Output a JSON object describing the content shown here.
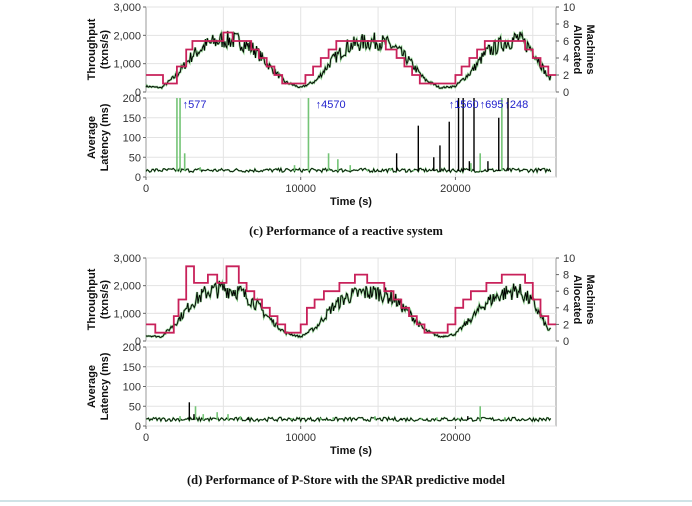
{
  "colors": {
    "throughput": "#000000",
    "machines": "#c8215a",
    "latency_reactive": "#000000",
    "latency_green": "#74c476",
    "annotation": "#2222cc",
    "grid": "#e3e3e3"
  },
  "captions": {
    "c": "(c) Performance of a reactive system",
    "d": "(d) Performance of P-Store with the SPAR predictive model"
  },
  "chart_data": [
    {
      "type": "line",
      "panel": "c-top",
      "ylabel": "Throughput (txns/s)",
      "ylabel_right": "Machines Allocated",
      "xlim": [
        0,
        26500
      ],
      "ylim": [
        0,
        3000
      ],
      "ylim_right": [
        0,
        10
      ],
      "yticks": [
        "0",
        "1,000",
        "2,000",
        "3,000"
      ],
      "yticks_right": [
        "0",
        "2",
        "4",
        "6",
        "8",
        "10"
      ],
      "series": [
        {
          "x": [
            0,
            1000,
            2000,
            3000,
            4000,
            5000,
            6000,
            7000,
            8000,
            9000,
            10000,
            11000,
            12000,
            13000,
            14000,
            15000,
            16000,
            17000,
            18000,
            19000,
            20000,
            21000,
            22000,
            23000,
            24000,
            25000,
            26000
          ],
          "y": [
            200,
            150,
            600,
            1300,
            1700,
            1850,
            1800,
            1500,
            900,
            350,
            150,
            400,
            1100,
            1600,
            1750,
            1800,
            1600,
            1100,
            450,
            150,
            200,
            700,
            1400,
            1700,
            1900,
            1500,
            500
          ]
        },
        {
          "steps": [
            [
              0,
              2
            ],
            [
              1100,
              1
            ],
            [
              2000,
              3
            ],
            [
              2600,
              5
            ],
            [
              3000,
              6
            ],
            [
              5000,
              7
            ],
            [
              5600,
              6
            ],
            [
              6800,
              5
            ],
            [
              7300,
              4
            ],
            [
              7800,
              3
            ],
            [
              8300,
              2
            ],
            [
              8800,
              1
            ],
            [
              10300,
              2
            ],
            [
              10800,
              3
            ],
            [
              11300,
              4
            ],
            [
              11800,
              5
            ],
            [
              12300,
              6
            ],
            [
              15500,
              5
            ],
            [
              16200,
              4
            ],
            [
              16700,
              3
            ],
            [
              17200,
              2
            ],
            [
              17700,
              1
            ],
            [
              20000,
              2
            ],
            [
              20400,
              3
            ],
            [
              20900,
              4
            ],
            [
              21400,
              5
            ],
            [
              21900,
              6
            ],
            [
              24500,
              5
            ],
            [
              25000,
              4
            ],
            [
              25500,
              3
            ],
            [
              26000,
              2
            ],
            [
              26500,
              2
            ]
          ]
        }
      ]
    },
    {
      "type": "line",
      "panel": "c-bottom",
      "xlabel": "Time (s)",
      "ylabel": "Average Latency (ms)",
      "xlim": [
        0,
        26500
      ],
      "ylim": [
        0,
        200
      ],
      "xticks": [
        "0",
        "10000",
        "20000"
      ],
      "yticks": [
        "0",
        "50",
        "100",
        "150",
        "200"
      ],
      "annotations": [
        {
          "x": 2300,
          "label": "577"
        },
        {
          "x": 10900,
          "label": "4570"
        },
        {
          "x": 19500,
          "label": "1560"
        },
        {
          "x": 21500,
          "label": "695"
        },
        {
          "x": 23100,
          "label": "248"
        }
      ],
      "spikes_green": [
        [
          2000,
          200
        ],
        [
          2200,
          200
        ],
        [
          2500,
          60
        ],
        [
          3500,
          25
        ],
        [
          9600,
          30
        ],
        [
          10500,
          200
        ],
        [
          11800,
          60
        ],
        [
          12400,
          45
        ],
        [
          13200,
          30
        ],
        [
          14300,
          20
        ],
        [
          15800,
          22
        ],
        [
          17300,
          18
        ],
        [
          21000,
          35
        ],
        [
          21600,
          60
        ],
        [
          23000,
          200
        ]
      ],
      "spikes_black": [
        [
          16200,
          60
        ],
        [
          17600,
          130
        ],
        [
          18600,
          50
        ],
        [
          19000,
          80
        ],
        [
          19600,
          140
        ],
        [
          20200,
          200
        ],
        [
          20500,
          200
        ],
        [
          20900,
          40
        ],
        [
          21200,
          200
        ],
        [
          22100,
          40
        ],
        [
          22800,
          150
        ],
        [
          23400,
          200
        ],
        [
          25500,
          20
        ]
      ]
    },
    {
      "type": "line",
      "panel": "d-top",
      "ylabel": "Throughput (txns/s)",
      "ylabel_right": "Machines Allocated",
      "xlim": [
        0,
        26500
      ],
      "ylim": [
        0,
        3000
      ],
      "ylim_right": [
        0,
        10
      ],
      "yticks": [
        "0",
        "1,000",
        "2,000",
        "3,000"
      ],
      "yticks_right": [
        "0",
        "2",
        "4",
        "6",
        "8",
        "10"
      ],
      "series": [
        {
          "x": [
            0,
            1000,
            2000,
            3000,
            4000,
            5000,
            6000,
            7000,
            8000,
            9000,
            10000,
            11000,
            12000,
            13000,
            14000,
            15000,
            16000,
            17000,
            18000,
            19000,
            20000,
            21000,
            22000,
            23000,
            24000,
            25000,
            26000
          ],
          "y": [
            200,
            150,
            700,
            1400,
            1800,
            1900,
            1800,
            1400,
            800,
            300,
            150,
            500,
            1200,
            1600,
            1750,
            1750,
            1550,
            1000,
            400,
            150,
            250,
            800,
            1400,
            1700,
            1850,
            1400,
            400
          ]
        },
        {
          "steps": [
            [
              0,
              2
            ],
            [
              600,
              1
            ],
            [
              1800,
              3
            ],
            [
              2100,
              5
            ],
            [
              2600,
              9
            ],
            [
              3100,
              7
            ],
            [
              4000,
              8
            ],
            [
              4600,
              7
            ],
            [
              5200,
              9
            ],
            [
              6000,
              7
            ],
            [
              6500,
              6
            ],
            [
              7000,
              5
            ],
            [
              7500,
              4
            ],
            [
              8000,
              3
            ],
            [
              8500,
              2
            ],
            [
              9000,
              1
            ],
            [
              10000,
              2
            ],
            [
              10400,
              4
            ],
            [
              10900,
              5
            ],
            [
              11500,
              6
            ],
            [
              12500,
              7
            ],
            [
              13500,
              8
            ],
            [
              14300,
              7
            ],
            [
              15400,
              6
            ],
            [
              16000,
              5
            ],
            [
              16500,
              4
            ],
            [
              17000,
              3
            ],
            [
              17500,
              2
            ],
            [
              18000,
              1
            ],
            [
              19500,
              2
            ],
            [
              20000,
              4
            ],
            [
              20500,
              5
            ],
            [
              21000,
              6
            ],
            [
              22000,
              7
            ],
            [
              23000,
              8
            ],
            [
              24500,
              7
            ],
            [
              25000,
              5
            ],
            [
              25500,
              3
            ],
            [
              26000,
              2
            ],
            [
              26500,
              2
            ]
          ]
        }
      ]
    },
    {
      "type": "line",
      "panel": "d-bottom",
      "xlabel": "Time (s)",
      "ylabel": "Average Latency (ms)",
      "xlim": [
        0,
        26500
      ],
      "ylim": [
        0,
        200
      ],
      "xticks": [
        "0",
        "10000",
        "20000"
      ],
      "yticks": [
        "0",
        "50",
        "100",
        "150",
        "200"
      ],
      "spikes_green": [
        [
          2200,
          25
        ],
        [
          3200,
          50
        ],
        [
          3700,
          30
        ],
        [
          4600,
          35
        ],
        [
          5300,
          30
        ],
        [
          6100,
          25
        ],
        [
          9400,
          20
        ],
        [
          11300,
          20
        ],
        [
          12100,
          22
        ],
        [
          14800,
          25
        ],
        [
          17800,
          20
        ],
        [
          18800,
          22
        ],
        [
          20200,
          20
        ],
        [
          21600,
          50
        ],
        [
          23200,
          22
        ]
      ],
      "spikes_black": [
        [
          2800,
          60
        ],
        [
          3100,
          30
        ],
        [
          6600,
          22
        ],
        [
          8900,
          18
        ],
        [
          13600,
          18
        ],
        [
          16500,
          18
        ],
        [
          20800,
          25
        ],
        [
          25000,
          15
        ]
      ]
    }
  ]
}
